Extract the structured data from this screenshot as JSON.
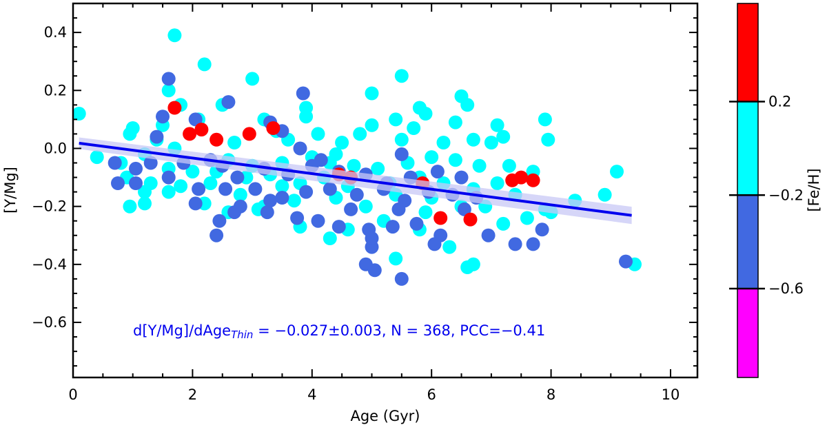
{
  "chart_data": {
    "type": "scatter",
    "xlabel": "Age (Gyr)",
    "ylabel": "[Y/Mg]",
    "xlim": [
      0,
      10.45
    ],
    "ylim": [
      -0.79,
      0.5
    ],
    "xticks": [
      0,
      2,
      4,
      6,
      8,
      10
    ],
    "xtick_labels": [
      "0",
      "2",
      "4",
      "6",
      "8",
      "10"
    ],
    "yticks": [
      0.4,
      0.2,
      0.0,
      -0.2,
      -0.4,
      -0.6
    ],
    "ytick_labels": [
      "0.4",
      "0.2",
      "0.0",
      "−0.2",
      "−0.4",
      "−0.6"
    ],
    "colors": {
      "low": "#ff00ff",
      "mid_low": "#4169e1",
      "mid_high": "#00ffff",
      "high": "#ff0000",
      "fit_line": "#0000ee",
      "fit_band": "#c8c8f5",
      "annotation": "#0000ee"
    },
    "fit": {
      "x": [
        0.1,
        9.35
      ],
      "y": [
        0.018,
        -0.231
      ],
      "band_halfwidth": 0.02
    },
    "annotation": {
      "prefix": "d[Y/Mg]/dAge",
      "subscript": "Thin",
      "suffix": " = −0.027±0.003, N = 368, PCC=−0.41"
    },
    "colorbar": {
      "label": "[Fe/H]",
      "bands": [
        {
          "color": "#ff0000",
          "from": 0.62,
          "to": 0.2
        },
        {
          "color": "#00ffff",
          "from": 0.2,
          "to": -0.2
        },
        {
          "color": "#4169e1",
          "from": -0.2,
          "to": -0.6
        },
        {
          "color": "#ff00ff",
          "from": -0.6,
          "to": -0.98
        }
      ],
      "ticks": [
        0.2,
        -0.2,
        -0.6
      ],
      "tick_labels": [
        "0.2",
        "−0.2",
        "−0.6"
      ]
    },
    "series": [
      {
        "name": "[Fe/H] -0.2 to 0.2",
        "color": "#00ffff",
        "points": [
          [
            0.1,
            0.12
          ],
          [
            1.7,
            0.39
          ],
          [
            2.2,
            0.29
          ],
          [
            3.0,
            0.24
          ],
          [
            1.6,
            0.2
          ],
          [
            5.5,
            0.25
          ],
          [
            5.0,
            0.19
          ],
          [
            6.5,
            0.18
          ],
          [
            6.6,
            0.15
          ],
          [
            1.8,
            0.15
          ],
          [
            2.5,
            0.15
          ],
          [
            3.9,
            0.14
          ],
          [
            5.8,
            0.14
          ],
          [
            3.9,
            0.11
          ],
          [
            1.0,
            0.07
          ],
          [
            1.5,
            0.08
          ],
          [
            2.1,
            0.1
          ],
          [
            3.2,
            0.1
          ],
          [
            5.0,
            0.08
          ],
          [
            5.4,
            0.1
          ],
          [
            5.9,
            0.12
          ],
          [
            7.9,
            0.1
          ],
          [
            6.4,
            0.09
          ],
          [
            7.1,
            0.08
          ],
          [
            0.95,
            0.05
          ],
          [
            1.4,
            0.03
          ],
          [
            2.7,
            0.02
          ],
          [
            3.6,
            0.03
          ],
          [
            4.1,
            0.05
          ],
          [
            4.5,
            0.02
          ],
          [
            4.8,
            0.05
          ],
          [
            6.7,
            0.03
          ],
          [
            7.2,
            0.04
          ],
          [
            7.0,
            0.02
          ],
          [
            7.95,
            0.03
          ],
          [
            5.5,
            0.03
          ],
          [
            5.7,
            0.07
          ],
          [
            6.2,
            0.02
          ],
          [
            0.4,
            -0.03
          ],
          [
            0.8,
            -0.05
          ],
          [
            1.2,
            -0.02
          ],
          [
            1.6,
            -0.07
          ],
          [
            2.0,
            -0.08
          ],
          [
            2.6,
            -0.04
          ],
          [
            3.0,
            -0.06
          ],
          [
            3.5,
            -0.05
          ],
          [
            4.0,
            -0.03
          ],
          [
            4.3,
            -0.05
          ],
          [
            4.7,
            -0.06
          ],
          [
            5.1,
            -0.07
          ],
          [
            5.6,
            -0.05
          ],
          [
            6.0,
            -0.03
          ],
          [
            6.4,
            -0.04
          ],
          [
            6.8,
            -0.06
          ],
          [
            7.3,
            -0.06
          ],
          [
            7.7,
            -0.08
          ],
          [
            0.9,
            -0.1
          ],
          [
            1.3,
            -0.12
          ],
          [
            1.8,
            -0.13
          ],
          [
            2.3,
            -0.12
          ],
          [
            2.9,
            -0.1
          ],
          [
            3.3,
            -0.09
          ],
          [
            3.8,
            -0.12
          ],
          [
            4.2,
            -0.1
          ],
          [
            4.6,
            -0.13
          ],
          [
            5.3,
            -0.12
          ],
          [
            5.8,
            -0.1
          ],
          [
            6.2,
            -0.12
          ],
          [
            6.7,
            -0.14
          ],
          [
            7.1,
            -0.12
          ],
          [
            9.1,
            -0.08
          ],
          [
            1.2,
            -0.15
          ],
          [
            1.6,
            -0.15
          ],
          [
            2.2,
            -0.19
          ],
          [
            2.8,
            -0.16
          ],
          [
            3.2,
            -0.2
          ],
          [
            3.7,
            -0.18
          ],
          [
            4.4,
            -0.17
          ],
          [
            4.9,
            -0.2
          ],
          [
            5.4,
            -0.16
          ],
          [
            6.0,
            -0.17
          ],
          [
            6.5,
            -0.2
          ],
          [
            7.4,
            -0.16
          ],
          [
            7.9,
            -0.21
          ],
          [
            8.4,
            -0.18
          ],
          [
            8.9,
            -0.16
          ],
          [
            0.95,
            -0.2
          ],
          [
            1.2,
            -0.19
          ],
          [
            2.6,
            -0.22
          ],
          [
            3.1,
            -0.21
          ],
          [
            3.8,
            -0.27
          ],
          [
            4.3,
            -0.31
          ],
          [
            5.4,
            -0.38
          ],
          [
            5.8,
            -0.28
          ],
          [
            6.3,
            -0.34
          ],
          [
            6.6,
            -0.41
          ],
          [
            6.7,
            -0.4
          ],
          [
            7.2,
            -0.26
          ],
          [
            7.6,
            -0.24
          ],
          [
            8.0,
            -0.22
          ],
          [
            9.4,
            -0.4
          ],
          [
            4.6,
            -0.28
          ],
          [
            5.2,
            -0.25
          ],
          [
            5.9,
            -0.22
          ],
          [
            6.9,
            -0.2
          ],
          [
            3.5,
            -0.13
          ],
          [
            2.4,
            -0.08
          ],
          [
            1.7,
            0.0
          ],
          [
            3.4,
            0.06
          ],
          [
            4.4,
            -0.02
          ]
        ]
      },
      {
        "name": "[Fe/H] -0.6 to -0.2",
        "color": "#4169e1",
        "points": [
          [
            1.6,
            0.24
          ],
          [
            3.85,
            0.19
          ],
          [
            2.6,
            0.16
          ],
          [
            1.5,
            0.11
          ],
          [
            2.05,
            0.1
          ],
          [
            3.3,
            0.09
          ],
          [
            1.4,
            0.04
          ],
          [
            3.5,
            0.06
          ],
          [
            3.8,
            0.0
          ],
          [
            5.5,
            -0.02
          ],
          [
            0.7,
            -0.05
          ],
          [
            1.05,
            -0.07
          ],
          [
            1.3,
            -0.05
          ],
          [
            1.85,
            -0.05
          ],
          [
            2.5,
            -0.06
          ],
          [
            2.75,
            -0.1
          ],
          [
            3.2,
            -0.07
          ],
          [
            3.6,
            -0.09
          ],
          [
            4.0,
            -0.06
          ],
          [
            4.45,
            -0.08
          ],
          [
            4.9,
            -0.09
          ],
          [
            5.25,
            -0.12
          ],
          [
            5.65,
            -0.1
          ],
          [
            6.1,
            -0.08
          ],
          [
            6.5,
            -0.1
          ],
          [
            0.75,
            -0.12
          ],
          [
            1.05,
            -0.12
          ],
          [
            1.6,
            -0.1
          ],
          [
            2.1,
            -0.14
          ],
          [
            2.55,
            -0.14
          ],
          [
            3.05,
            -0.14
          ],
          [
            3.5,
            -0.17
          ],
          [
            3.9,
            -0.15
          ],
          [
            4.3,
            -0.14
          ],
          [
            4.75,
            -0.16
          ],
          [
            5.2,
            -0.14
          ],
          [
            5.55,
            -0.18
          ],
          [
            5.95,
            -0.15
          ],
          [
            6.35,
            -0.16
          ],
          [
            6.75,
            -0.17
          ],
          [
            2.05,
            -0.19
          ],
          [
            2.45,
            -0.25
          ],
          [
            2.8,
            -0.2
          ],
          [
            3.25,
            -0.22
          ],
          [
            3.75,
            -0.24
          ],
          [
            4.1,
            -0.25
          ],
          [
            4.45,
            -0.27
          ],
          [
            4.95,
            -0.28
          ],
          [
            5.35,
            -0.27
          ],
          [
            5.75,
            -0.26
          ],
          [
            6.15,
            -0.3
          ],
          [
            6.95,
            -0.3
          ],
          [
            7.4,
            -0.33
          ],
          [
            7.7,
            -0.33
          ],
          [
            7.85,
            -0.28
          ],
          [
            2.4,
            -0.3
          ],
          [
            2.7,
            -0.22
          ],
          [
            5.0,
            -0.34
          ],
          [
            4.9,
            -0.4
          ],
          [
            5.05,
            -0.42
          ],
          [
            5.5,
            -0.45
          ],
          [
            6.05,
            -0.33
          ],
          [
            9.25,
            -0.39
          ],
          [
            5.0,
            -0.31
          ],
          [
            6.55,
            -0.21
          ],
          [
            5.45,
            -0.21
          ],
          [
            4.65,
            -0.21
          ],
          [
            3.3,
            -0.18
          ],
          [
            2.3,
            -0.04
          ],
          [
            4.15,
            -0.04
          ]
        ]
      },
      {
        "name": "[Fe/H] 0.2 to 0.62",
        "color": "#ff0000",
        "points": [
          [
            1.7,
            0.14
          ],
          [
            1.95,
            0.05
          ],
          [
            2.15,
            0.065
          ],
          [
            2.4,
            0.03
          ],
          [
            2.95,
            0.05
          ],
          [
            3.35,
            0.07
          ],
          [
            4.45,
            -0.09
          ],
          [
            4.65,
            -0.1
          ],
          [
            5.85,
            -0.12
          ],
          [
            6.15,
            -0.24
          ],
          [
            6.65,
            -0.245
          ],
          [
            7.35,
            -0.11
          ],
          [
            7.5,
            -0.1
          ],
          [
            7.7,
            -0.11
          ]
        ]
      }
    ]
  }
}
